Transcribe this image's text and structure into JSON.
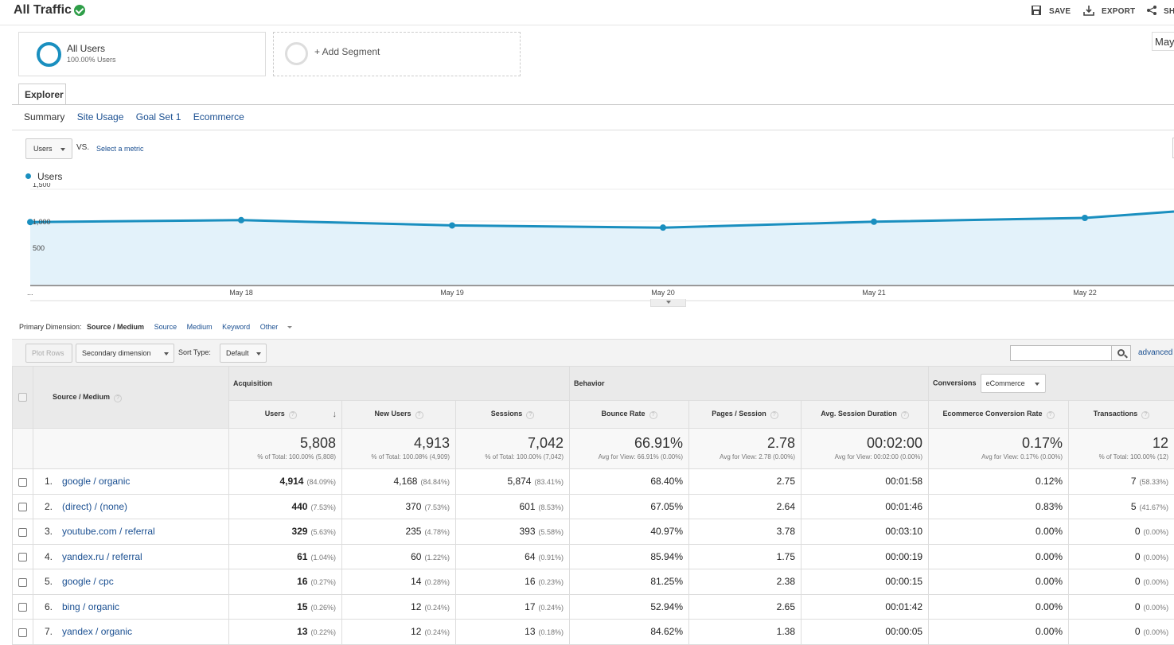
{
  "header": {
    "title": "All Traffic",
    "actions": {
      "save": "SAVE",
      "export": "EXPORT",
      "share": "SH"
    }
  },
  "segments": {
    "active": {
      "name": "All Users",
      "subtitle": "100.00% Users"
    },
    "add_label": "+ Add Segment"
  },
  "date_range_partial": "May",
  "tabs": {
    "main": "Explorer",
    "sub": [
      "Summary",
      "Site Usage",
      "Goal Set 1",
      "Ecommerce"
    ]
  },
  "chart_controls": {
    "metric": "Users",
    "vs": "VS.",
    "select_metric": "Select a metric"
  },
  "chart_data": {
    "type": "area",
    "series": [
      {
        "name": "Users",
        "values": [
          985,
          1015,
          932,
          898,
          990,
          1050,
          1150
        ]
      }
    ],
    "x": [
      "...",
      "May 18",
      "May 19",
      "May 20",
      "May 21",
      "May 22",
      ""
    ],
    "y_ticks": [
      "1,500",
      "1,000",
      "500"
    ],
    "ylim": [
      0,
      1500
    ],
    "legend": "top-left",
    "grid": true,
    "color": "#1a8fbf",
    "fill": "#e3f2fa"
  },
  "primary_dimension": {
    "label": "Primary Dimension:",
    "selected": "Source / Medium",
    "options": [
      "Source",
      "Medium",
      "Keyword",
      "Other"
    ]
  },
  "toolbar": {
    "plot_rows": "Plot Rows",
    "secondary_dimension": "Secondary dimension",
    "sort_type_label": "Sort Type:",
    "sort_type": "Default",
    "advanced": "advanced"
  },
  "table": {
    "dimension_header": "Source / Medium",
    "groups": {
      "acquisition": "Acquisition",
      "behavior": "Behavior",
      "conversions": "Conversions",
      "conversion_select": "eCommerce"
    },
    "columns": [
      "Users",
      "New Users",
      "Sessions",
      "Bounce Rate",
      "Pages / Session",
      "Avg. Session Duration",
      "Ecommerce Conversion Rate",
      "Transactions"
    ],
    "totals": [
      {
        "value": "5,808",
        "sub": "% of Total: 100.00% (5,808)"
      },
      {
        "value": "4,913",
        "sub": "% of Total: 100.08% (4,909)"
      },
      {
        "value": "7,042",
        "sub": "% of Total: 100.00% (7,042)"
      },
      {
        "value": "66.91%",
        "sub": "Avg for View: 66.91% (0.00%)"
      },
      {
        "value": "2.78",
        "sub": "Avg for View: 2.78 (0.00%)"
      },
      {
        "value": "00:02:00",
        "sub": "Avg for View: 00:02:00 (0.00%)"
      },
      {
        "value": "0.17%",
        "sub": "Avg for View: 0.17% (0.00%)"
      },
      {
        "value": "12",
        "sub": "% of Total: 100.00% (12)"
      }
    ],
    "rows": [
      {
        "idx": "1.",
        "src": "google / organic",
        "users": "4,914",
        "users_pct": "(84.09%)",
        "new": "4,168",
        "new_pct": "(84.84%)",
        "sessions": "5,874",
        "sessions_pct": "(83.41%)",
        "bounce": "68.40%",
        "pages": "2.75",
        "dur": "00:01:58",
        "conv": "0.12%",
        "trans": "7",
        "trans_pct": "(58.33%)"
      },
      {
        "idx": "2.",
        "src": "(direct) / (none)",
        "users": "440",
        "users_pct": "(7.53%)",
        "new": "370",
        "new_pct": "(7.53%)",
        "sessions": "601",
        "sessions_pct": "(8.53%)",
        "bounce": "67.05%",
        "pages": "2.64",
        "dur": "00:01:46",
        "conv": "0.83%",
        "trans": "5",
        "trans_pct": "(41.67%)"
      },
      {
        "idx": "3.",
        "src": "youtube.com / referral",
        "users": "329",
        "users_pct": "(5.63%)",
        "new": "235",
        "new_pct": "(4.78%)",
        "sessions": "393",
        "sessions_pct": "(5.58%)",
        "bounce": "40.97%",
        "pages": "3.78",
        "dur": "00:03:10",
        "conv": "0.00%",
        "trans": "0",
        "trans_pct": "(0.00%)"
      },
      {
        "idx": "4.",
        "src": "yandex.ru / referral",
        "users": "61",
        "users_pct": "(1.04%)",
        "new": "60",
        "new_pct": "(1.22%)",
        "sessions": "64",
        "sessions_pct": "(0.91%)",
        "bounce": "85.94%",
        "pages": "1.75",
        "dur": "00:00:19",
        "conv": "0.00%",
        "trans": "0",
        "trans_pct": "(0.00%)"
      },
      {
        "idx": "5.",
        "src": "google / cpc",
        "users": "16",
        "users_pct": "(0.27%)",
        "new": "14",
        "new_pct": "(0.28%)",
        "sessions": "16",
        "sessions_pct": "(0.23%)",
        "bounce": "81.25%",
        "pages": "2.38",
        "dur": "00:00:15",
        "conv": "0.00%",
        "trans": "0",
        "trans_pct": "(0.00%)"
      },
      {
        "idx": "6.",
        "src": "bing / organic",
        "users": "15",
        "users_pct": "(0.26%)",
        "new": "12",
        "new_pct": "(0.24%)",
        "sessions": "17",
        "sessions_pct": "(0.24%)",
        "bounce": "52.94%",
        "pages": "2.65",
        "dur": "00:01:42",
        "conv": "0.00%",
        "trans": "0",
        "trans_pct": "(0.00%)"
      },
      {
        "idx": "7.",
        "src": "yandex / organic",
        "users": "13",
        "users_pct": "(0.22%)",
        "new": "12",
        "new_pct": "(0.24%)",
        "sessions": "13",
        "sessions_pct": "(0.18%)",
        "bounce": "84.62%",
        "pages": "1.38",
        "dur": "00:00:05",
        "conv": "0.00%",
        "trans": "0",
        "trans_pct": "(0.00%)"
      }
    ]
  }
}
